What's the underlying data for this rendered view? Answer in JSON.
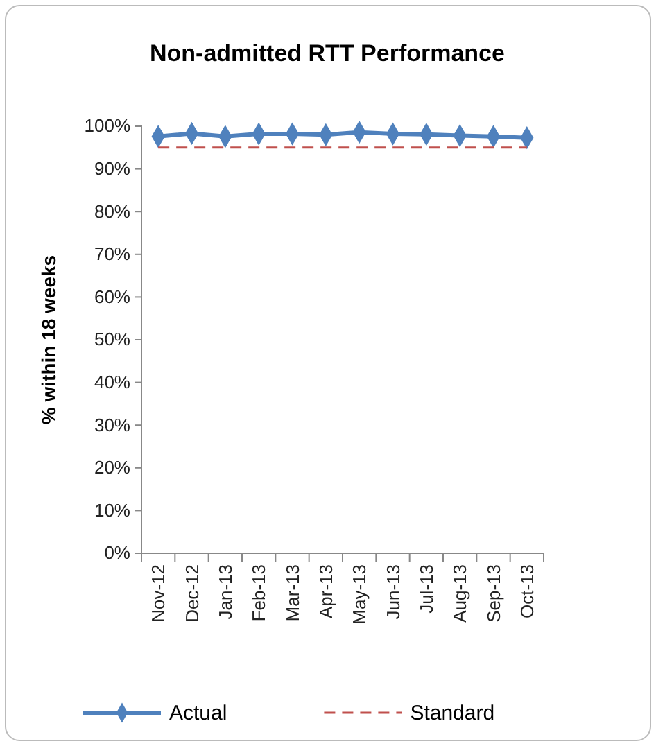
{
  "chart_data": {
    "type": "line",
    "title": "Non-admitted RTT Performance",
    "ylabel": "% within 18 weeks",
    "categories": [
      "Nov-12",
      "Dec-12",
      "Jan-13",
      "Feb-13",
      "Mar-13",
      "Apr-13",
      "May-13",
      "Jun-13",
      "Jul-13",
      "Aug-13",
      "Sep-13",
      "Oct-13"
    ],
    "series": [
      {
        "name": "Actual",
        "color": "#4f81bd",
        "marker": "diamond",
        "line_style": "solid",
        "values": [
          97.6,
          98.3,
          97.6,
          98.2,
          98.2,
          98.0,
          98.6,
          98.2,
          98.1,
          97.8,
          97.6,
          97.3
        ]
      },
      {
        "name": "Standard",
        "color": "#c0504d",
        "marker": "none",
        "line_style": "dashed",
        "values": [
          95,
          95,
          95,
          95,
          95,
          95,
          95,
          95,
          95,
          95,
          95,
          95
        ]
      }
    ],
    "ylim": [
      0,
      100
    ],
    "yticks": [
      {
        "value": 0,
        "label": "0%"
      },
      {
        "value": 10,
        "label": "10%"
      },
      {
        "value": 20,
        "label": "20%"
      },
      {
        "value": 30,
        "label": "30%"
      },
      {
        "value": 40,
        "label": "40%"
      },
      {
        "value": 50,
        "label": "50%"
      },
      {
        "value": 60,
        "label": "60%"
      },
      {
        "value": 70,
        "label": "70%"
      },
      {
        "value": 80,
        "label": "80%"
      },
      {
        "value": 90,
        "label": "90%"
      },
      {
        "value": 100,
        "label": "100%"
      }
    ],
    "grid": false,
    "legend": "bottom"
  }
}
